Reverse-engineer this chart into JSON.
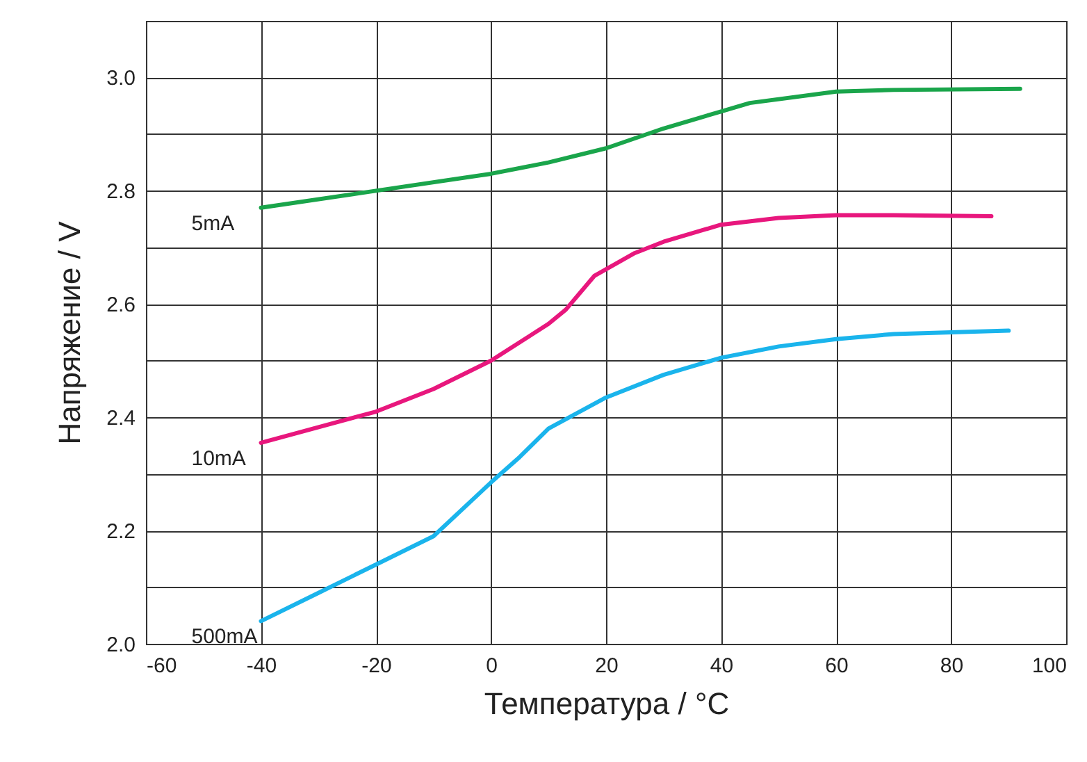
{
  "chart_data": {
    "type": "line",
    "xlabel": "Температура / °C",
    "ylabel": "Напряжение / V",
    "xlim": [
      -60,
      100
    ],
    "xticks": [
      -60,
      -40,
      -20,
      0,
      20,
      40,
      60,
      80,
      100
    ],
    "ylim": [
      2.0,
      3.1
    ],
    "yticks": [
      {
        "value": 2.0,
        "label": "2.0"
      },
      {
        "value": 2.1,
        "label": null
      },
      2.2,
      {
        "value": 2.3,
        "label": null
      },
      2.4,
      {
        "value": 2.5,
        "label": null
      },
      2.6,
      {
        "value": 2.7,
        "label": null
      },
      2.8,
      {
        "value": 2.9,
        "label": null
      },
      {
        "value": 3.0,
        "label": "3.0"
      }
    ],
    "grid": true,
    "marker": "none",
    "line_style": "solid",
    "series": [
      {
        "name": "5mA",
        "color": "#1aa54b",
        "x": [
          -40,
          -20,
          0,
          10,
          20,
          30,
          40,
          45,
          60,
          70,
          92
        ],
        "values": [
          2.77,
          2.8,
          2.83,
          2.85,
          2.875,
          2.91,
          2.94,
          2.955,
          2.975,
          2.978,
          2.98
        ]
      },
      {
        "name": "10mA",
        "color": "#e8177d",
        "x": [
          -40,
          -20,
          -10,
          0,
          10,
          13,
          18,
          25,
          30,
          40,
          50,
          60,
          70,
          87
        ],
        "values": [
          2.355,
          2.41,
          2.45,
          2.5,
          2.565,
          2.59,
          2.65,
          2.69,
          2.71,
          2.74,
          2.752,
          2.757,
          2.757,
          2.755
        ]
      },
      {
        "name": "500mA",
        "color": "#1ab4ec",
        "x": [
          -40,
          -30,
          -20,
          -10,
          0,
          5,
          10,
          20,
          30,
          40,
          50,
          60,
          70,
          90
        ],
        "values": [
          2.04,
          2.09,
          2.14,
          2.19,
          2.285,
          2.33,
          2.38,
          2.435,
          2.475,
          2.505,
          2.525,
          2.538,
          2.547,
          2.553
        ]
      }
    ]
  }
}
